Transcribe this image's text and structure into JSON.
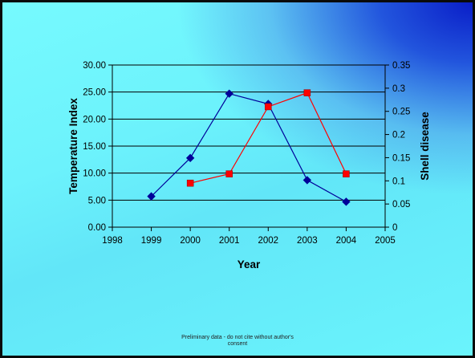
{
  "chart_data": {
    "type": "line",
    "x_ticks": [
      "1998",
      "1999",
      "2000",
      "2001",
      "2002",
      "2003",
      "2004",
      "2005"
    ],
    "xlim": [
      1998,
      2005
    ],
    "xlabel": "Year",
    "y_left": {
      "label": "Temperature Index",
      "lim": [
        0,
        30
      ],
      "ticks": [
        "0.00",
        "5.00",
        "10.00",
        "15.00",
        "20.00",
        "25.00",
        "30.00"
      ],
      "tick_values": [
        0,
        5,
        10,
        15,
        20,
        25,
        30
      ]
    },
    "y_right": {
      "label": "Shell disease",
      "lim": [
        0,
        0.35
      ],
      "ticks": [
        "0",
        "0.05",
        "0.1",
        "0.15",
        "0.2",
        "0.25",
        "0.3",
        "0.35"
      ],
      "tick_values": [
        0,
        0.05,
        0.1,
        0.15,
        0.2,
        0.25,
        0.3,
        0.35
      ]
    },
    "grid": "horizontal major lines",
    "series": [
      {
        "axis": "left",
        "color": "#000099",
        "marker": "diamond",
        "x": [
          1999,
          2000,
          2001,
          2002,
          2003,
          2004
        ],
        "y": [
          5.7,
          12.8,
          24.7,
          22.8,
          8.7,
          4.7
        ]
      },
      {
        "axis": "right",
        "color": "#ff0000",
        "marker": "square",
        "x": [
          2000,
          2001,
          2002,
          2003,
          2004
        ],
        "y": [
          0.095,
          0.115,
          0.26,
          0.29,
          0.115
        ]
      }
    ]
  },
  "footnote": {
    "line1": "Preliminary data - do not cite without author's",
    "line2": "consent"
  }
}
